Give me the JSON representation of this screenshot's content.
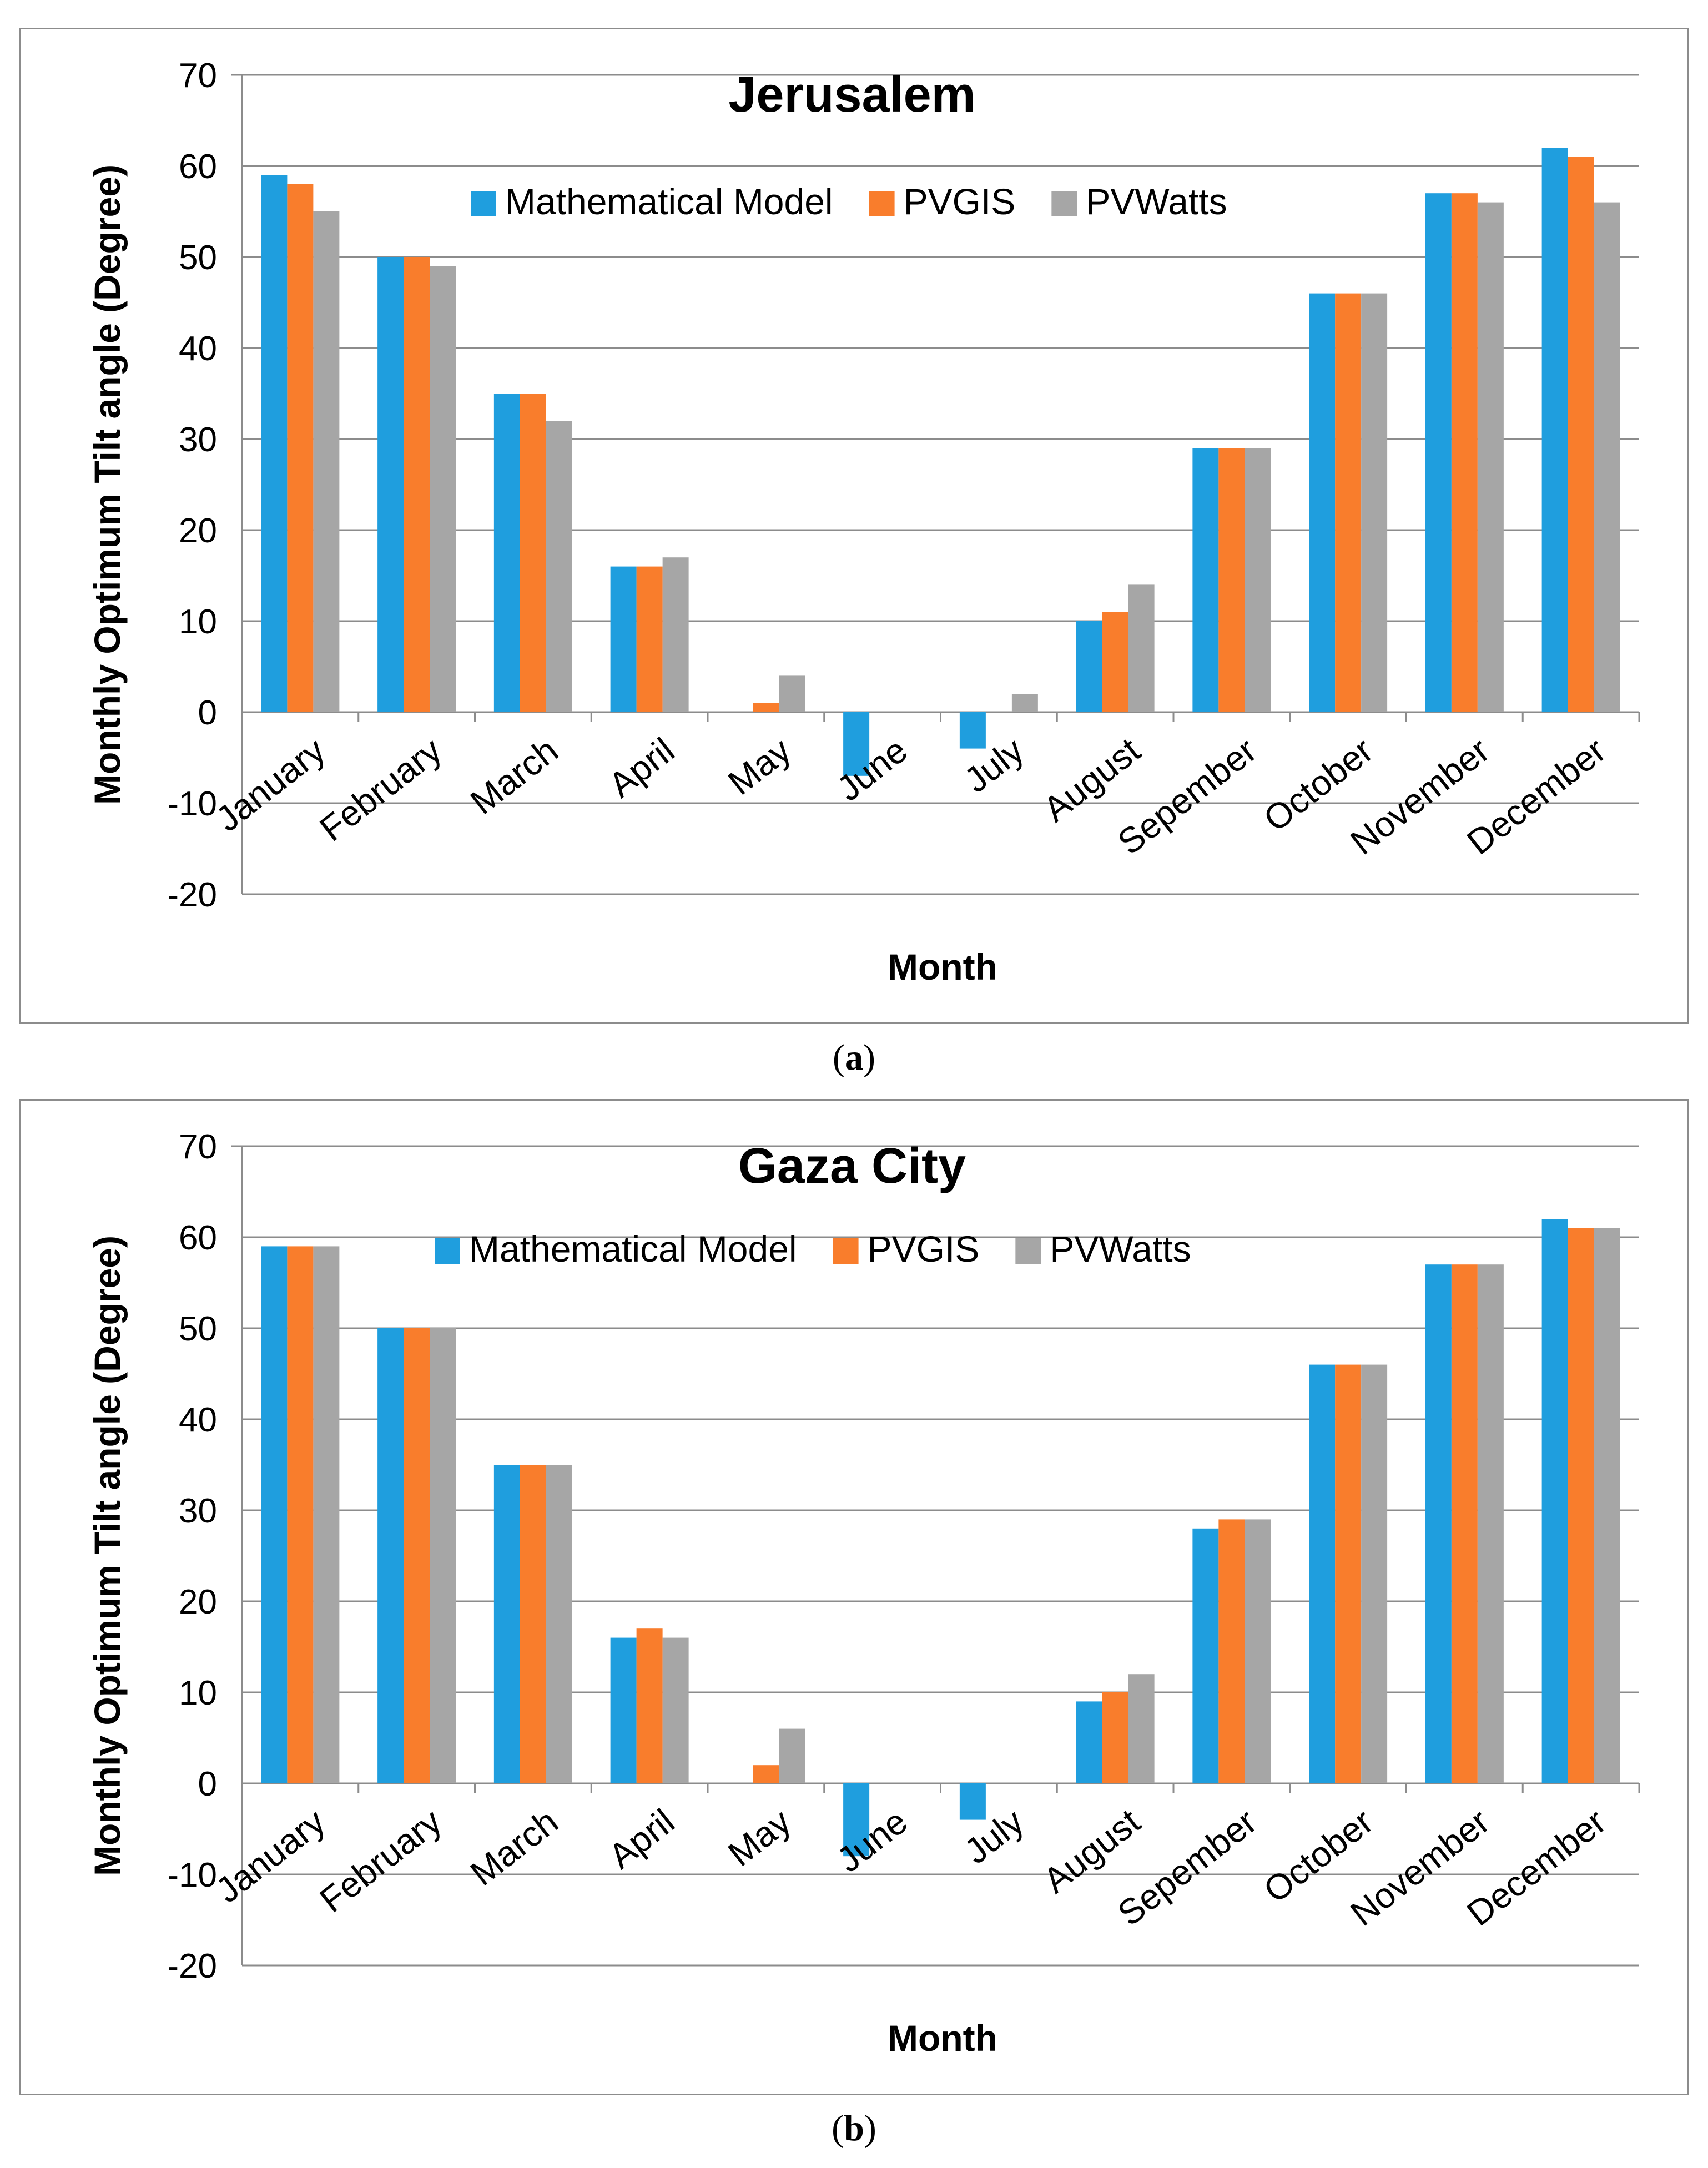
{
  "series_colors": {
    "Mathematical Model": "#1f9ede",
    "PVGIS": "#f97d2c",
    "PVWatts": "#a6a6a6"
  },
  "charts": [
    {
      "caption_label": "a"
    },
    {
      "caption_label": "b"
    }
  ],
  "chart_data": [
    {
      "type": "bar",
      "title": "Jerusalem",
      "xlabel": "Month",
      "ylabel": "Monthly Optimum Tilt angle (Degree)",
      "ylim": [
        -20,
        70
      ],
      "yticks": [
        70,
        60,
        50,
        40,
        30,
        20,
        10,
        0,
        -10,
        -20
      ],
      "grid": true,
      "legend_position": "top-center",
      "categories": [
        "January",
        "February",
        "March",
        "April",
        "May",
        "June",
        "July",
        "August",
        "Sepember",
        "October",
        "November",
        "December"
      ],
      "series": [
        {
          "name": "Mathematical Model",
          "values": [
            59,
            50,
            35,
            16,
            0,
            -7,
            -4,
            10,
            29,
            46,
            57,
            62
          ]
        },
        {
          "name": "PVGIS",
          "values": [
            58,
            50,
            35,
            16,
            1,
            0,
            0,
            11,
            29,
            46,
            57,
            61
          ]
        },
        {
          "name": "PVWatts",
          "values": [
            55,
            49,
            32,
            17,
            4,
            0,
            2,
            14,
            29,
            46,
            56,
            56
          ]
        }
      ]
    },
    {
      "type": "bar",
      "title": "Gaza City",
      "xlabel": "Month",
      "ylabel": "Monthly Optimum Tilt angle (Degree)",
      "ylim": [
        -20,
        70
      ],
      "yticks": [
        70,
        60,
        50,
        40,
        30,
        20,
        10,
        0,
        -10,
        -20
      ],
      "grid": true,
      "legend_position": "top-center",
      "categories": [
        "January",
        "February",
        "March",
        "April",
        "May",
        "June",
        "July",
        "August",
        "Sepember",
        "October",
        "November",
        "December"
      ],
      "series": [
        {
          "name": "Mathematical Model",
          "values": [
            59,
            50,
            35,
            16,
            0,
            -8,
            -4,
            9,
            28,
            46,
            57,
            62
          ]
        },
        {
          "name": "PVGIS",
          "values": [
            59,
            50,
            35,
            17,
            2,
            0,
            0,
            10,
            29,
            46,
            57,
            61
          ]
        },
        {
          "name": "PVWatts",
          "values": [
            59,
            50,
            35,
            16,
            6,
            0,
            0,
            12,
            29,
            46,
            57,
            61
          ]
        }
      ]
    }
  ]
}
